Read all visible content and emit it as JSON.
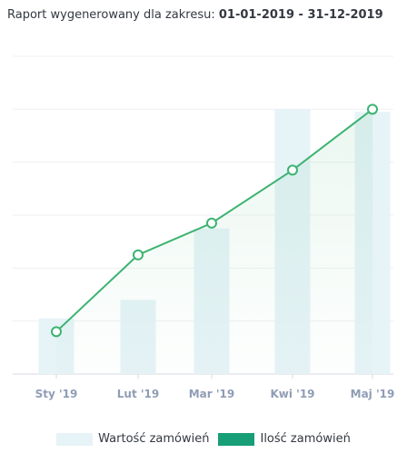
{
  "header": {
    "prefix": "Raport wygenerowany dla zakresu:",
    "date_from": "01-01-2019",
    "separator": "-",
    "date_to": "31-12-2019"
  },
  "chart_data": {
    "type": "bar",
    "title": "",
    "xlabel": "",
    "ylabel": "",
    "categories": [
      "Sty '19",
      "Lut '19",
      "Mar '19",
      "Kwi '19",
      "Maj '19"
    ],
    "ylim": [
      0,
      6
    ],
    "grid": true,
    "legend_position": "bottom",
    "series": [
      {
        "name": "Wartość zamówień",
        "kind": "bar",
        "color": "#e6f3f7",
        "values": [
          1.05,
          1.4,
          2.75,
          5.0,
          4.95
        ]
      },
      {
        "name": "Ilość zamówień",
        "kind": "line",
        "color": "#3cb371",
        "values": [
          0.8,
          2.25,
          2.85,
          3.85,
          5.0
        ]
      }
    ]
  },
  "legend": {
    "items": [
      {
        "label": "Wartość zamówień",
        "color": "#e6f3f7"
      },
      {
        "label": "Ilość zamówień",
        "color": "#179e76"
      }
    ]
  }
}
